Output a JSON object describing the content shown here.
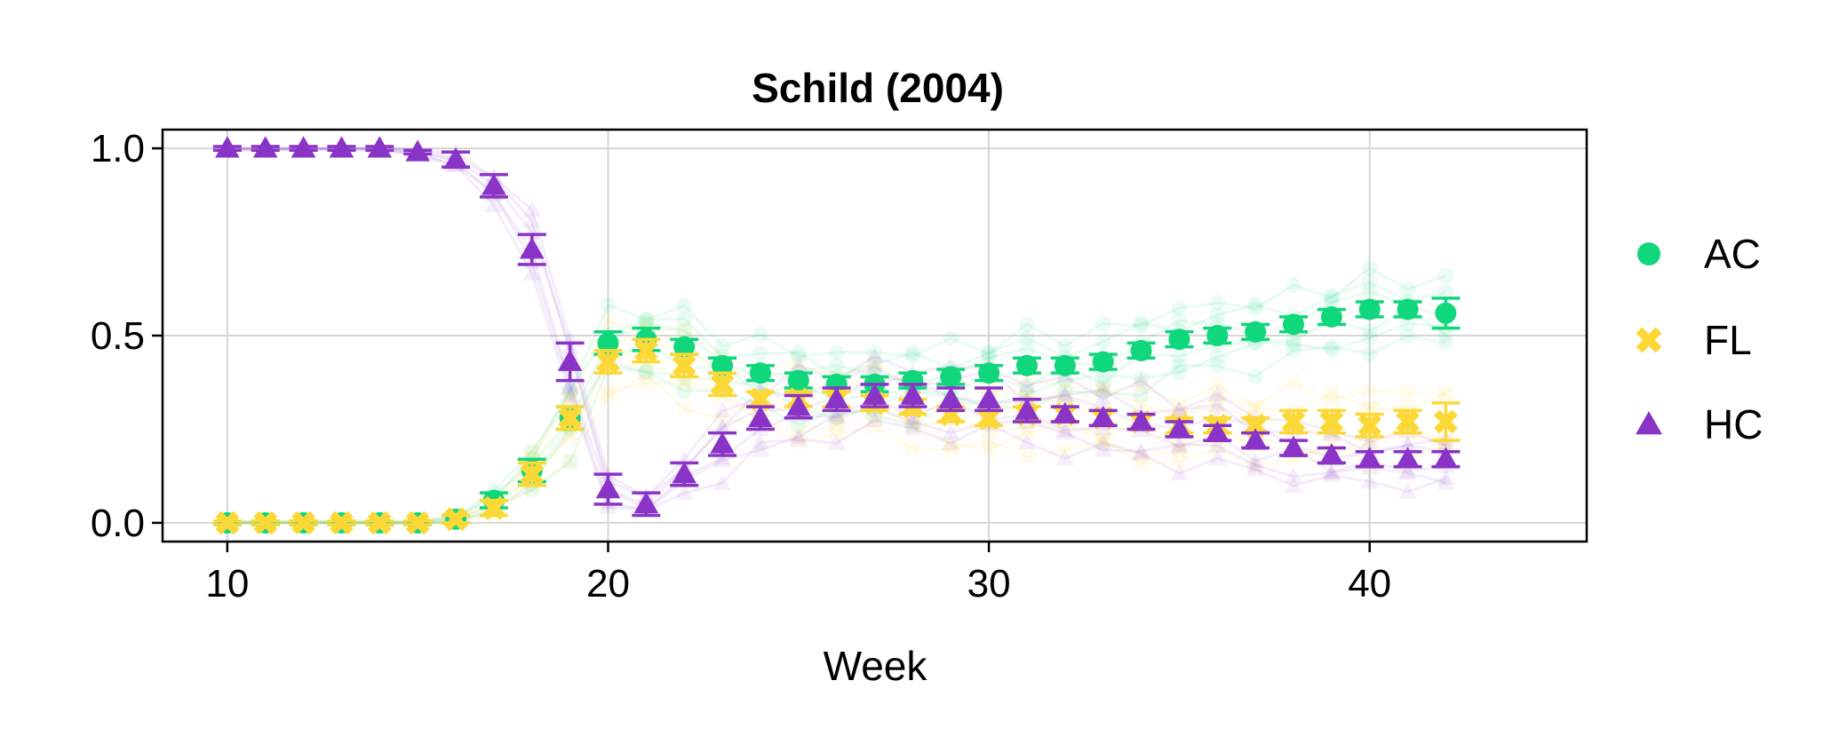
{
  "chart_data": {
    "type": "line",
    "title": "Schild (2004)",
    "xlabel": "Week",
    "ylabel": "",
    "xlim": [
      8.3,
      45.7
    ],
    "ylim": [
      -0.05,
      1.05
    ],
    "xticks": [
      10,
      20,
      30,
      40
    ],
    "yticks": [
      0.0,
      0.5,
      1.0
    ],
    "xtick_labels": [
      "10",
      "20",
      "30",
      "40"
    ],
    "ytick_labels": [
      "0.0",
      "0.5",
      "1.0"
    ],
    "grid": true,
    "legend_position": "right",
    "x": [
      10,
      11,
      12,
      13,
      14,
      15,
      16,
      17,
      18,
      19,
      20,
      21,
      22,
      23,
      24,
      25,
      26,
      27,
      28,
      29,
      30,
      31,
      32,
      33,
      34,
      35,
      36,
      37,
      38,
      39,
      40,
      41,
      42
    ],
    "series": [
      {
        "name": "AC",
        "color": "#10d67c",
        "marker": "circle",
        "values": [
          0.0,
          0.0,
          0.0,
          0.0,
          0.0,
          0.0,
          0.01,
          0.06,
          0.14,
          0.28,
          0.48,
          0.49,
          0.47,
          0.42,
          0.4,
          0.38,
          0.37,
          0.37,
          0.38,
          0.39,
          0.4,
          0.42,
          0.42,
          0.43,
          0.46,
          0.49,
          0.5,
          0.51,
          0.53,
          0.55,
          0.57,
          0.57,
          0.56
        ],
        "errors": [
          0.005,
          0.005,
          0.005,
          0.005,
          0.005,
          0.005,
          0.01,
          0.02,
          0.03,
          0.03,
          0.03,
          0.03,
          0.02,
          0.02,
          0.02,
          0.02,
          0.02,
          0.02,
          0.02,
          0.02,
          0.02,
          0.02,
          0.02,
          0.02,
          0.02,
          0.02,
          0.02,
          0.02,
          0.02,
          0.02,
          0.02,
          0.02,
          0.04
        ]
      },
      {
        "name": "FL",
        "color": "#fcd837",
        "marker": "x",
        "values": [
          0.0,
          0.0,
          0.0,
          0.0,
          0.0,
          0.0,
          0.01,
          0.04,
          0.13,
          0.28,
          0.43,
          0.46,
          0.42,
          0.37,
          0.33,
          0.33,
          0.33,
          0.32,
          0.31,
          0.29,
          0.28,
          0.29,
          0.29,
          0.28,
          0.27,
          0.26,
          0.26,
          0.26,
          0.27,
          0.27,
          0.26,
          0.27,
          0.27
        ],
        "errors": [
          0.005,
          0.005,
          0.005,
          0.005,
          0.005,
          0.005,
          0.01,
          0.02,
          0.03,
          0.03,
          0.03,
          0.03,
          0.03,
          0.03,
          0.02,
          0.02,
          0.02,
          0.02,
          0.02,
          0.02,
          0.02,
          0.02,
          0.02,
          0.02,
          0.02,
          0.02,
          0.02,
          0.02,
          0.03,
          0.03,
          0.03,
          0.03,
          0.05
        ]
      },
      {
        "name": "HC",
        "color": "#8a34c7",
        "marker": "triangle",
        "values": [
          1.0,
          1.0,
          1.0,
          1.0,
          1.0,
          0.99,
          0.97,
          0.9,
          0.73,
          0.43,
          0.09,
          0.05,
          0.13,
          0.21,
          0.28,
          0.31,
          0.33,
          0.34,
          0.34,
          0.33,
          0.33,
          0.3,
          0.29,
          0.28,
          0.27,
          0.25,
          0.24,
          0.22,
          0.2,
          0.18,
          0.17,
          0.17,
          0.17
        ],
        "errors": [
          0.005,
          0.005,
          0.005,
          0.005,
          0.005,
          0.005,
          0.02,
          0.03,
          0.04,
          0.05,
          0.04,
          0.03,
          0.03,
          0.03,
          0.03,
          0.03,
          0.03,
          0.03,
          0.03,
          0.03,
          0.03,
          0.03,
          0.02,
          0.02,
          0.02,
          0.02,
          0.02,
          0.02,
          0.02,
          0.02,
          0.02,
          0.02,
          0.02
        ]
      }
    ]
  }
}
